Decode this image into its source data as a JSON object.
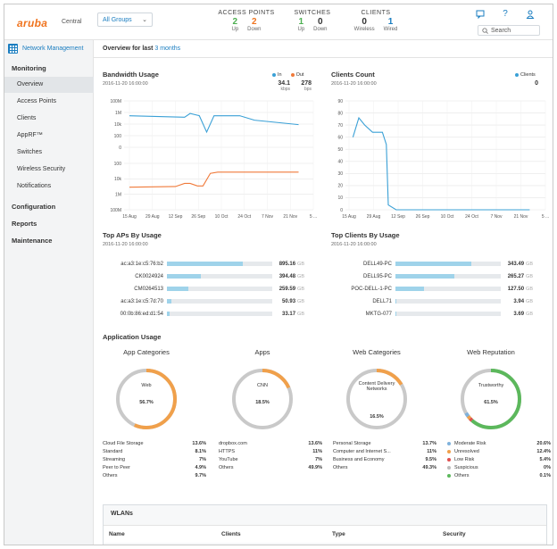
{
  "header": {
    "logo": "aruba",
    "logo_sub": "Central",
    "group_select": "All Groups",
    "access_points": {
      "title": "ACCESS POINTS",
      "up": "2",
      "up_label": "Up",
      "down": "2",
      "down_label": "Down"
    },
    "switches": {
      "title": "SWITCHES",
      "up": "1",
      "up_label": "Up",
      "down": "0",
      "down_label": "Down"
    },
    "clients": {
      "title": "CLIENTS",
      "wireless": "0",
      "wireless_label": "Wireless",
      "wired": "1",
      "wired_label": "Wired"
    },
    "search_placeholder": "Search",
    "icons": [
      "chat-icon",
      "help-icon",
      "user-icon"
    ]
  },
  "sidebar": {
    "module": "Network Management",
    "sections": [
      {
        "label": "Monitoring"
      },
      {
        "label": "Configuration"
      },
      {
        "label": "Reports"
      },
      {
        "label": "Maintenance"
      }
    ],
    "items": [
      {
        "label": "Overview"
      },
      {
        "label": "Access Points"
      },
      {
        "label": "Clients"
      },
      {
        "label": "AppRF™"
      },
      {
        "label": "Switches"
      },
      {
        "label": "Wireless Security"
      },
      {
        "label": "Notifications"
      }
    ]
  },
  "main": {
    "overview_prefix": "Overview for last",
    "overview_range": "3 months",
    "bandwidth": {
      "title": "Bandwidth Usage",
      "timestamp": "2016-11-20 16:00:00",
      "in_label": "In",
      "out_label": "Out",
      "in_value": "34.1",
      "in_unit": "kbps",
      "out_value": "278",
      "out_unit": "bps"
    },
    "clients_count": {
      "title": "Clients Count",
      "timestamp": "2016-11-20 16:00:00",
      "legend": "Clients",
      "value": "0"
    },
    "top_aps": {
      "title": "Top APs By Usage",
      "timestamp": "2016-11-20 16:00:00",
      "rows": [
        {
          "name": "ac:a3:1e:c5:76:b2",
          "value": "895.16",
          "unit": "GB",
          "fill": 0.72
        },
        {
          "name": "CK0024924",
          "value": "394.48",
          "unit": "GB",
          "fill": 0.32
        },
        {
          "name": "CM0264513",
          "value": "259.59",
          "unit": "GB",
          "fill": 0.2
        },
        {
          "name": "ac:a3:1e:c5:7d:70",
          "value": "50.93",
          "unit": "GB",
          "fill": 0.04
        },
        {
          "name": "00:0b:86:ed:d1:54",
          "value": "33.17",
          "unit": "GB",
          "fill": 0.025
        }
      ]
    },
    "top_clients": {
      "title": "Top Clients By Usage",
      "timestamp": "2016-11-20 16:00:00",
      "rows": [
        {
          "name": "DELL49-PC",
          "value": "343.49",
          "unit": "GB",
          "fill": 0.72
        },
        {
          "name": "DELL95-PC",
          "value": "265.27",
          "unit": "GB",
          "fill": 0.56
        },
        {
          "name": "POC-DELL-1-PC",
          "value": "127.50",
          "unit": "GB",
          "fill": 0.27
        },
        {
          "name": "DELL71",
          "value": "3.94",
          "unit": "GB",
          "fill": 0.01
        },
        {
          "name": "MKTG-077",
          "value": "3.69",
          "unit": "GB",
          "fill": 0.008
        }
      ]
    },
    "app_usage": {
      "title": "Application Usage",
      "donuts": [
        {
          "title": "App Categories",
          "center": "Web",
          "pct": "56.7%",
          "fraction": 0.567,
          "color": "#f0a04b",
          "legend": [
            [
              "Cloud File Storage",
              "13.6%"
            ],
            [
              "Standard",
              "8.1%"
            ],
            [
              "Streaming",
              "7%"
            ],
            [
              "Peer to Peer",
              "4.9%"
            ],
            [
              "Others",
              "9.7%"
            ]
          ]
        },
        {
          "title": "Apps",
          "center": "CNN",
          "pct": "18.5%",
          "fraction": 0.185,
          "color": "#f0a04b",
          "legend": [
            [
              "dropbox.com",
              "13.6%"
            ],
            [
              "HTTPS",
              "11%"
            ],
            [
              "YouTube",
              "7%"
            ],
            [
              "Others",
              "49.9%"
            ]
          ]
        },
        {
          "title": "Web Categories",
          "center": "Content Delivery Networks",
          "pct": "16.5%",
          "fraction": 0.165,
          "color": "#f0a04b",
          "legend": [
            [
              "Personal Storage",
              "13.7%"
            ],
            [
              "Computer and Internet S...",
              "11%"
            ],
            [
              "Business and Economy",
              "9.5%"
            ],
            [
              "Others",
              "49.3%"
            ]
          ]
        },
        {
          "title": "Web Reputation",
          "center": "Trustworthy",
          "pct": "61.5%",
          "fraction": 0.615,
          "color": "#5cb85c",
          "legend": [
            [
              "Moderate Risk",
              "20.6%",
              "#7fb2dc"
            ],
            [
              "Unresolved",
              "12.4%",
              "#f0a04b"
            ],
            [
              "Low Risk",
              "5.4%",
              "#e05050"
            ],
            [
              "Suspicious",
              "0%",
              "#bbbbbb"
            ],
            [
              "Others",
              "0.1%",
              "#5cb85c"
            ]
          ]
        }
      ]
    },
    "wlans": {
      "title": "WLANs",
      "columns": [
        "Name",
        "Clients",
        "Type",
        "Security"
      ]
    }
  },
  "chart_data": [
    {
      "type": "line",
      "title": "Bandwidth Usage",
      "x_ticks": [
        "15 Aug",
        "29 Aug",
        "12 Sep",
        "26 Sep",
        "10 Oct",
        "24 Oct",
        "7 Nov",
        "21 Nov",
        "5 ..."
      ],
      "y_ticks_in": [
        "100M",
        "1M",
        "10k",
        "100",
        "0"
      ],
      "y_ticks_out": [
        "100",
        "10k",
        "1M",
        "100M"
      ],
      "series": [
        {
          "name": "In",
          "color": "#3aa0d6",
          "points": [
            [
              0,
              0.2
            ],
            [
              0.3,
              0.22
            ],
            [
              0.33,
              0.17
            ],
            [
              0.38,
              0.2
            ],
            [
              0.42,
              0.42
            ],
            [
              0.46,
              0.2
            ],
            [
              0.6,
              0.2
            ],
            [
              0.68,
              0.26
            ],
            [
              0.92,
              0.32
            ]
          ]
        },
        {
          "name": "Out",
          "color": "#f07a3a",
          "points": [
            [
              0,
              0.58
            ],
            [
              0.25,
              0.57
            ],
            [
              0.3,
              0.52
            ],
            [
              0.33,
              0.52
            ],
            [
              0.37,
              0.56
            ],
            [
              0.4,
              0.56
            ],
            [
              0.44,
              0.36
            ],
            [
              0.48,
              0.34
            ],
            [
              0.92,
              0.34
            ]
          ]
        }
      ]
    },
    {
      "type": "line",
      "title": "Clients Count",
      "x_ticks": [
        "15 Aug",
        "29 Aug",
        "12 Sep",
        "26 Sep",
        "10 Oct",
        "24 Oct",
        "7 Nov",
        "21 Nov",
        "5 ..."
      ],
      "y_ticks": [
        "90",
        "80",
        "70",
        "60",
        "50",
        "40",
        "30",
        "20",
        "10",
        "0"
      ],
      "ylim": [
        0,
        90
      ],
      "series": [
        {
          "name": "Clients",
          "color": "#3aa0d6",
          "points": [
            [
              0.02,
              60
            ],
            [
              0.05,
              76
            ],
            [
              0.08,
              70
            ],
            [
              0.12,
              64
            ],
            [
              0.17,
              64
            ],
            [
              0.19,
              54
            ],
            [
              0.2,
              4
            ],
            [
              0.24,
              0
            ],
            [
              0.3,
              0
            ],
            [
              0.36,
              0
            ],
            [
              0.42,
              0
            ],
            [
              0.5,
              0
            ],
            [
              0.6,
              0
            ],
            [
              0.7,
              0
            ],
            [
              0.8,
              0
            ],
            [
              0.92,
              0
            ]
          ]
        }
      ]
    }
  ]
}
